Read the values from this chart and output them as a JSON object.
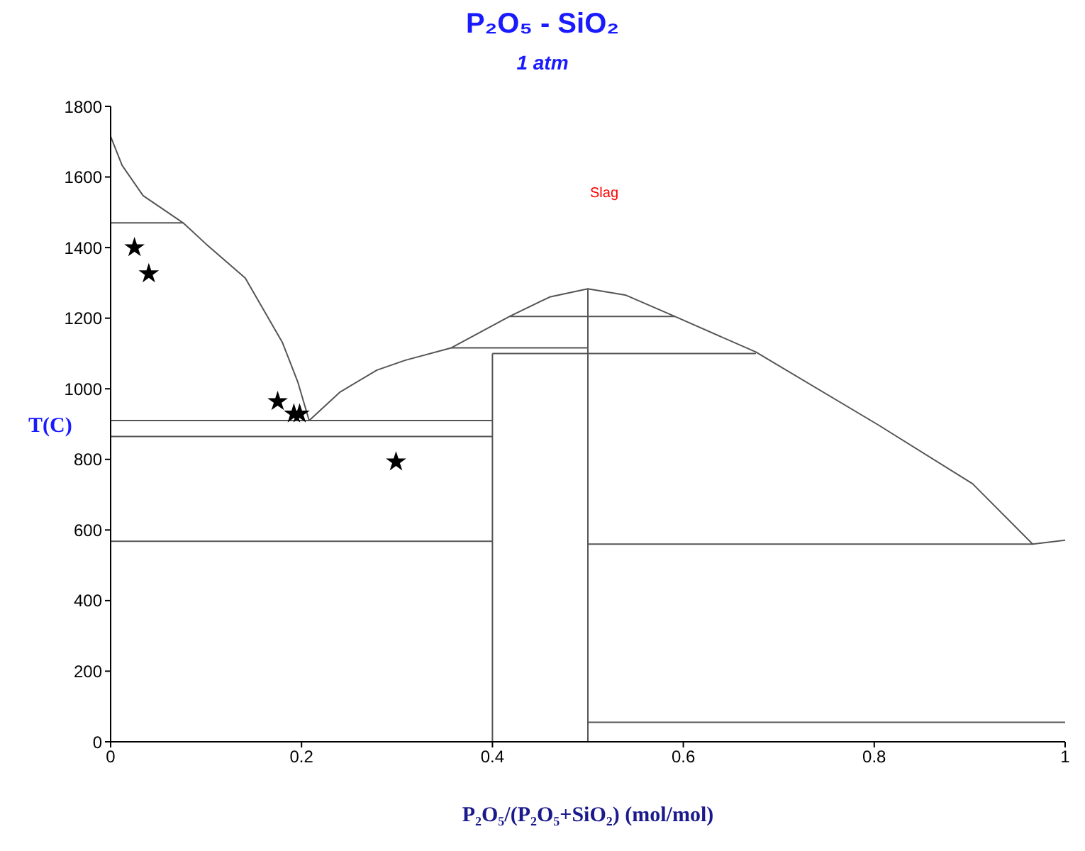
{
  "chart_data": {
    "type": "line",
    "title": "P₂O₅ - SiO₂",
    "subtitle": "1 atm",
    "xlabel": "P₂O₅/(P₂O₅+SiO₂) (mol/mol)",
    "ylabel": "T(C)",
    "xlim": [
      0,
      1
    ],
    "xticks": [
      0,
      0.2,
      0.4,
      0.6,
      0.8,
      1
    ],
    "ylim": [
      0,
      1800
    ],
    "yticks": [
      0,
      200,
      400,
      600,
      800,
      1000,
      1200,
      1400,
      1600,
      1800
    ],
    "grid": false,
    "legend": false,
    "annotations": [
      "Slag"
    ],
    "series": [
      {
        "color": "#555555",
        "x": [
          0,
          0.012,
          0.034,
          0.076,
          0.1,
          0.141,
          0.18,
          0.196,
          0.208
        ],
        "values": [
          1715,
          1633,
          1547,
          1470,
          1410,
          1314,
          1131,
          1020,
          910
        ]
      },
      {
        "color": "#555555",
        "x": [
          0.208,
          0.24,
          0.279,
          0.309,
          0.357,
          0.418,
          0.46,
          0.5,
          0.54,
          0.591,
          0.676,
          0.804,
          0.903,
          0.966,
          1
        ],
        "values": [
          910,
          990,
          1053,
          1081,
          1116,
          1205,
          1260,
          1283,
          1265,
          1205,
          1104,
          898,
          731,
          560,
          571
        ]
      },
      {
        "color": "#555555",
        "x": [
          0,
          0.076
        ],
        "values": [
          1470,
          1470
        ]
      },
      {
        "color": "#555555",
        "x": [
          0,
          0.4
        ],
        "values": [
          910,
          910
        ]
      },
      {
        "color": "#555555",
        "x": [
          0,
          0.4
        ],
        "values": [
          865,
          865
        ]
      },
      {
        "color": "#555555",
        "x": [
          0,
          0.4
        ],
        "values": [
          568,
          568
        ]
      },
      {
        "color": "#555555",
        "x": [
          0.357,
          0.5
        ],
        "values": [
          1116,
          1116
        ]
      },
      {
        "color": "#555555",
        "x": [
          0.4,
          0.676
        ],
        "values": [
          1100,
          1100
        ]
      },
      {
        "color": "#555555",
        "x": [
          0.418,
          0.591
        ],
        "values": [
          1205,
          1205
        ]
      },
      {
        "color": "#555555",
        "x": [
          0.5,
          0.966
        ],
        "values": [
          560,
          560
        ]
      },
      {
        "color": "#555555",
        "x": [
          0.5,
          1
        ],
        "values": [
          55,
          55
        ]
      },
      {
        "color": "#555555",
        "x": [
          0.4,
          0.4
        ],
        "values": [
          0,
          1100
        ]
      },
      {
        "color": "#555555",
        "x": [
          0.5,
          0.5
        ],
        "values": [
          0,
          1283
        ]
      },
      {
        "type": "scatter",
        "color": "#000000",
        "marker": "star",
        "x": [
          0.025,
          0.04,
          0.175,
          0.192,
          0.198,
          0.299
        ],
        "values": [
          1400,
          1326,
          964,
          929,
          929,
          793
        ]
      }
    ]
  }
}
